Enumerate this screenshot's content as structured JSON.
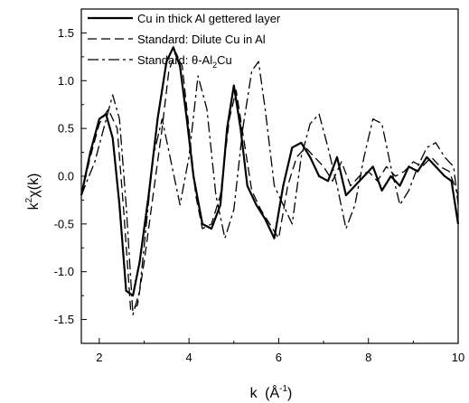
{
  "chart_data": {
    "type": "line",
    "title": "",
    "xlabel": {
      "main": "k",
      "unit_base": "(Å",
      "unit_exp": "-1",
      "unit_close": ")"
    },
    "ylabel": {
      "k": "k",
      "exp": "2",
      "rest": "χ(k)"
    },
    "xlim": [
      1.6,
      10.0
    ],
    "ylim": [
      -1.75,
      1.75
    ],
    "xticks": [
      2,
      4,
      6,
      8,
      10
    ],
    "xtick_labels": [
      "2",
      "4",
      "6",
      "8",
      "10"
    ],
    "yticks": [
      -1.5,
      -1.0,
      -0.5,
      0.0,
      0.5,
      1.0,
      1.5
    ],
    "ytick_labels": [
      "-1.5",
      "-1.0",
      "-0.5",
      "0.0",
      "0.5",
      "1.0",
      "1.5"
    ],
    "grid": false,
    "legend_position": "top-left",
    "series": [
      {
        "name": "Cu in thick Al gettered layer",
        "style": "solid",
        "color": "#000000",
        "x": [
          1.6,
          1.8,
          2.0,
          2.15,
          2.3,
          2.45,
          2.6,
          2.75,
          2.9,
          3.1,
          3.3,
          3.5,
          3.65,
          3.8,
          3.95,
          4.1,
          4.3,
          4.5,
          4.7,
          4.85,
          5.0,
          5.15,
          5.3,
          5.5,
          5.7,
          5.9,
          6.1,
          6.3,
          6.5,
          6.7,
          6.9,
          7.1,
          7.3,
          7.5,
          7.7,
          7.9,
          8.1,
          8.3,
          8.5,
          8.7,
          8.9,
          9.1,
          9.3,
          9.5,
          9.7,
          9.85,
          10.0
        ],
        "y": [
          -0.2,
          0.25,
          0.6,
          0.65,
          0.4,
          -0.3,
          -1.2,
          -1.25,
          -0.9,
          -0.2,
          0.6,
          1.2,
          1.35,
          1.15,
          0.6,
          0.0,
          -0.5,
          -0.55,
          -0.3,
          0.5,
          0.95,
          0.5,
          -0.1,
          -0.3,
          -0.45,
          -0.65,
          -0.1,
          0.3,
          0.35,
          0.2,
          0.0,
          -0.05,
          0.2,
          -0.2,
          -0.1,
          0.0,
          0.1,
          -0.15,
          0.0,
          -0.1,
          0.1,
          0.05,
          0.2,
          0.1,
          0.0,
          -0.05,
          -0.5
        ]
      },
      {
        "name": "Standard: Dilute Cu in Al",
        "style": "dashed",
        "color": "#000000",
        "x": [
          1.6,
          1.8,
          2.0,
          2.2,
          2.4,
          2.55,
          2.7,
          2.85,
          3.0,
          3.2,
          3.4,
          3.55,
          3.7,
          3.85,
          4.0,
          4.15,
          4.3,
          4.5,
          4.7,
          4.9,
          5.05,
          5.2,
          5.4,
          5.6,
          5.8,
          6.0,
          6.2,
          6.4,
          6.6,
          6.8,
          7.0,
          7.2,
          7.4,
          7.6,
          7.8,
          8.0,
          8.2,
          8.4,
          8.6,
          8.8,
          9.0,
          9.2,
          9.4,
          9.6,
          9.8,
          10.0
        ],
        "y": [
          -0.2,
          0.2,
          0.55,
          0.7,
          0.5,
          -0.4,
          -1.4,
          -1.35,
          -0.9,
          -0.2,
          0.5,
          1.1,
          1.3,
          1.15,
          0.5,
          -0.2,
          -0.55,
          -0.5,
          -0.2,
          0.6,
          0.9,
          0.45,
          -0.15,
          -0.35,
          -0.5,
          -0.65,
          -0.1,
          0.2,
          0.3,
          0.2,
          0.1,
          -0.05,
          0.15,
          -0.1,
          0.0,
          0.05,
          -0.05,
          0.1,
          0.0,
          0.05,
          0.15,
          0.1,
          0.2,
          0.1,
          0.05,
          -0.2
        ]
      },
      {
        "name": "Standard: θ-Al₂Cu",
        "legend_parts": {
          "prefix": "Standard: θ-Al",
          "sub": "2",
          "suffix": "Cu"
        },
        "style": "dash-dot",
        "color": "#000000",
        "x": [
          1.6,
          1.9,
          2.1,
          2.3,
          2.45,
          2.6,
          2.75,
          2.9,
          3.05,
          3.2,
          3.4,
          3.6,
          3.8,
          4.0,
          4.2,
          4.4,
          4.6,
          4.8,
          5.0,
          5.2,
          5.4,
          5.55,
          5.7,
          5.9,
          6.1,
          6.3,
          6.5,
          6.7,
          6.9,
          7.1,
          7.3,
          7.5,
          7.7,
          7.9,
          8.1,
          8.3,
          8.5,
          8.7,
          8.9,
          9.1,
          9.3,
          9.5,
          9.7,
          9.9,
          10.0
        ],
        "y": [
          -0.2,
          0.15,
          0.5,
          0.85,
          0.6,
          -0.3,
          -1.45,
          -1.2,
          -0.5,
          0.2,
          0.6,
          0.15,
          -0.3,
          0.2,
          1.05,
          0.7,
          -0.2,
          -0.65,
          -0.35,
          0.5,
          1.1,
          1.2,
          0.7,
          -0.1,
          -0.3,
          -0.5,
          0.2,
          0.55,
          0.65,
          0.3,
          -0.1,
          -0.55,
          -0.3,
          0.2,
          0.6,
          0.55,
          0.1,
          -0.3,
          -0.15,
          0.1,
          0.3,
          0.35,
          0.2,
          0.1,
          -0.3
        ]
      }
    ]
  }
}
